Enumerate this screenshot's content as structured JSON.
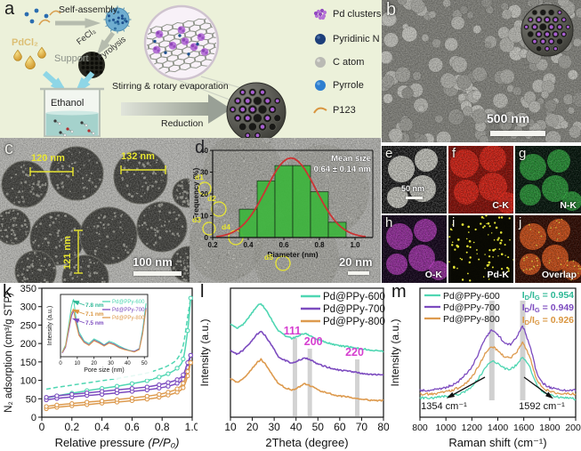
{
  "figure": {
    "letters": {
      "a": "a",
      "b": "b",
      "c": "c",
      "d": "d",
      "e": "e",
      "f": "f",
      "g": "g",
      "h": "h",
      "i": "i",
      "j": "j",
      "k": "k",
      "l": "l",
      "m": "m"
    }
  },
  "panel_a": {
    "labels": {
      "self_assembly": "Self-assembly",
      "fecl3": "FeCl₃",
      "pyrolysis": "Pyrolysis",
      "pdcl2": "PdCl₂",
      "support": "Support",
      "ethanol": "Ethanol",
      "stirring": "Stirring & rotary evaporation",
      "reduction": "Reduction"
    },
    "legend": [
      {
        "label": "Pd clusters"
      },
      {
        "label": "Pyridinic N"
      },
      {
        "label": "C atom"
      },
      {
        "label": "Pyrrole"
      },
      {
        "label": "P123"
      }
    ]
  },
  "panel_b": {
    "scale_bar": "500 nm"
  },
  "panel_c": {
    "measurements": [
      "120 nm",
      "132 nm",
      "121 nm"
    ],
    "scale_bar": "100 nm"
  },
  "panel_d": {
    "site_labels": [
      "d1",
      "d2",
      "d3",
      "d4",
      "d5"
    ],
    "scale_bar": "20 nm"
  },
  "panel_e": {
    "scale_bar": "50 nm"
  },
  "maps": {
    "f": "C-K",
    "g": "N-K",
    "h": "O-K",
    "i": "Pd-K",
    "j": "Overlap"
  },
  "colors": {
    "series_600": "#4fd6b2",
    "series_700": "#7c4bbf",
    "series_800": "#dd9a4e",
    "peak_label": "#d63fd0",
    "histogram_bar": "#3db53d",
    "fit_curve": "#cc3333",
    "annotation_yellow": "#e8e632"
  },
  "chart_data": [
    {
      "id": "n2-isotherm",
      "type": "line",
      "panel": "k",
      "xlabel": "Relative pressure (P/P₀)",
      "ylabel": "N₂ adsorption (cm³/g STP)",
      "xlim": [
        0,
        1.0
      ],
      "ylim": [
        0,
        350
      ],
      "xtick_labels": [
        "0",
        "0.2",
        "0.4",
        "0.6",
        "0.8",
        "1.0"
      ],
      "xtick_vals": [
        0,
        0.2,
        0.4,
        0.6,
        0.8,
        1.0
      ],
      "yticks": [
        0,
        50,
        100,
        150,
        200,
        250,
        300,
        350
      ],
      "series": [
        {
          "name": "Pd@PPy-600",
          "branch": "adsorption",
          "color": "#4fd6b2",
          "style": "markers",
          "x": [
            0.03,
            0.1,
            0.2,
            0.3,
            0.4,
            0.5,
            0.6,
            0.7,
            0.78,
            0.84,
            0.9,
            0.94,
            0.97,
            0.99
          ],
          "y": [
            52,
            58,
            65,
            72,
            78,
            84,
            91,
            99,
            109,
            118,
            133,
            158,
            235,
            323
          ]
        },
        {
          "name": "Pd@PPy-600",
          "branch": "desorption",
          "color": "#4fd6b2",
          "style": "dashed",
          "y": [
            76,
            81,
            87,
            93,
            99,
            105,
            112,
            120,
            130,
            140,
            158,
            195,
            272,
            323
          ]
        },
        {
          "name": "Pd@PPy-700",
          "branch": "adsorption",
          "color": "#7c4bbf",
          "style": "markers",
          "y": [
            47,
            51,
            55,
            59,
            62,
            66,
            70,
            74,
            79,
            84,
            92,
            103,
            135,
            168
          ]
        },
        {
          "name": "Pd@PPy-700",
          "branch": "desorption",
          "color": "#7c4bbf",
          "style": "line",
          "y": [
            54,
            58,
            62,
            66,
            70,
            74,
            78,
            82,
            88,
            94,
            102,
            115,
            148,
            168
          ]
        },
        {
          "name": "Pd@PPy-800",
          "branch": "adsorption",
          "color": "#dd9a4e",
          "style": "markers",
          "y": [
            23,
            27,
            31,
            34,
            38,
            41,
            45,
            49,
            54,
            60,
            68,
            80,
            112,
            148
          ]
        },
        {
          "name": "Pd@PPy-800",
          "branch": "desorption",
          "color": "#dd9a4e",
          "style": "line",
          "y": [
            29,
            33,
            37,
            41,
            44,
            48,
            52,
            57,
            62,
            68,
            77,
            92,
            124,
            148
          ]
        }
      ]
    },
    {
      "id": "pore-size",
      "type": "line",
      "panel": "k-inset",
      "xlabel": "Pore size (nm)",
      "ylabel": "Intensity (a.u.)",
      "xlim": [
        0,
        52
      ],
      "ylim": [
        0,
        105
      ],
      "xticks": [
        0,
        10,
        20,
        30,
        40,
        50
      ],
      "peak_annotations": [
        {
          "text": "7.8 nm",
          "series": "Pd@PPy-600",
          "color": "#2eb896"
        },
        {
          "text": "7.1 nm",
          "series": "Pd@PPy-800",
          "color": "#d9953f"
        },
        {
          "text": "7.5 nm",
          "series": "Pd@PPy-700",
          "color": "#7c4bbf"
        }
      ],
      "series": [
        {
          "name": "Pd@PPy-600",
          "color": "#4fd6b2",
          "x": [
            1,
            3,
            5,
            6.5,
            7.8,
            9,
            11,
            14,
            17,
            20,
            23,
            26,
            29,
            32,
            35,
            38,
            41,
            44,
            47,
            49,
            51
          ],
          "y": [
            8,
            20,
            55,
            85,
            97,
            70,
            42,
            27,
            22,
            30,
            26,
            20,
            26,
            23,
            18,
            14,
            11,
            9,
            14,
            45,
            90
          ]
        },
        {
          "name": "Pd@PPy-700",
          "color": "#7c4bbf",
          "y": [
            6,
            16,
            45,
            68,
            78,
            62,
            38,
            25,
            20,
            28,
            24,
            19,
            24,
            21,
            16,
            13,
            10,
            9,
            13,
            40,
            82
          ]
        },
        {
          "name": "Pd@PPy-800",
          "color": "#dd9a4e",
          "y": [
            7,
            18,
            50,
            74,
            80,
            58,
            36,
            24,
            19,
            27,
            23,
            18,
            23,
            20,
            15,
            12,
            10,
            8,
            12,
            38,
            80
          ]
        }
      ]
    },
    {
      "id": "xrd",
      "type": "line",
      "panel": "l",
      "xlabel": "2Theta (degree)",
      "ylabel": "Intensity (a.u.)",
      "xlim": [
        10,
        80
      ],
      "ylim": [
        0,
        100
      ],
      "xticks": [
        10,
        20,
        30,
        40,
        50,
        60,
        70,
        80
      ],
      "peak_labels": [
        {
          "text": "111",
          "x": 39.5
        },
        {
          "text": "200",
          "x": 46.3
        },
        {
          "text": "220",
          "x": 68
        }
      ],
      "series": [
        {
          "name": "Pd@PPy-600",
          "color": "#4fd6b2",
          "x": [
            10,
            13,
            16,
            19,
            22,
            24,
            26,
            29,
            32,
            35,
            38,
            41,
            44,
            47,
            50,
            54,
            58,
            62,
            66,
            70,
            75,
            80
          ],
          "y": [
            72,
            69,
            72,
            79,
            86,
            88,
            84,
            75,
            67,
            63,
            61,
            63,
            65,
            63,
            60,
            58,
            56,
            55,
            54,
            53,
            52,
            51
          ]
        },
        {
          "name": "Pd@PPy-700",
          "color": "#7c4bbf",
          "y": [
            52,
            49,
            52,
            58,
            64,
            67,
            63,
            55,
            47,
            44,
            42,
            44,
            46,
            44,
            41,
            39,
            37,
            36,
            35,
            34,
            33,
            33
          ]
        },
        {
          "name": "Pd@PPy-800",
          "color": "#dd9a4e",
          "y": [
            30,
            27,
            30,
            36,
            42,
            45,
            41,
            33,
            26,
            23,
            21,
            23,
            26,
            24,
            21,
            19,
            17,
            16,
            15,
            14,
            13,
            13
          ]
        }
      ]
    },
    {
      "id": "raman",
      "type": "line",
      "panel": "m",
      "xlabel": "Raman shift (cm⁻¹)",
      "ylabel": "Intensity (a.u.)",
      "xlim": [
        800,
        2000
      ],
      "ylim": [
        0,
        100
      ],
      "xticks": [
        800,
        1000,
        1200,
        1400,
        1600,
        1800,
        2000
      ],
      "band_positions": [
        1354,
        1592
      ],
      "band_labels": [
        "1354 cm⁻¹",
        "1592 cm⁻¹"
      ],
      "ratios": [
        {
          "name": "Pd@PPy-600",
          "label_parts": [
            "I",
            "D",
            "/I",
            "G"
          ],
          "value": "= 0.954",
          "color": "#2eb896"
        },
        {
          "name": "Pd@PPy-700",
          "label_parts": [
            "I",
            "D",
            "/I",
            "G"
          ],
          "value": "= 0.949",
          "color": "#7c4bbf"
        },
        {
          "name": "Pd@PPy-800",
          "label_parts": [
            "I",
            "D",
            "/I",
            "G"
          ],
          "value": "= 0.926",
          "color": "#d9953f"
        }
      ],
      "series": [
        {
          "name": "Pd@PPy-600",
          "color": "#4fd6b2",
          "x": [
            800,
            850,
            900,
            950,
            1000,
            1050,
            1100,
            1150,
            1200,
            1250,
            1300,
            1354,
            1400,
            1450,
            1500,
            1550,
            1592,
            1650,
            1700,
            1750,
            1800,
            1850,
            1900,
            1950,
            2000
          ],
          "y": [
            15,
            15,
            15,
            16,
            16,
            17,
            18,
            20,
            24,
            30,
            38,
            44,
            42,
            38,
            37,
            41,
            47,
            38,
            25,
            19,
            17,
            16,
            15,
            15,
            14
          ]
        },
        {
          "name": "Pd@PPy-800",
          "color": "#dd9a4e",
          "y": [
            18,
            18,
            18,
            19,
            20,
            21,
            23,
            26,
            31,
            39,
            49,
            55,
            52,
            47,
            46,
            51,
            58,
            46,
            29,
            22,
            20,
            19,
            18,
            18,
            18
          ]
        },
        {
          "name": "Pd@PPy-700",
          "color": "#7c4bbf",
          "y": [
            21,
            21,
            21,
            22,
            23,
            25,
            28,
            33,
            39,
            49,
            61,
            68,
            64,
            58,
            56,
            63,
            71,
            55,
            34,
            26,
            23,
            22,
            21,
            21,
            21
          ]
        }
      ]
    },
    {
      "id": "size-histogram",
      "type": "bar",
      "panel": "d",
      "xlabel": "Diameter (nm)",
      "ylabel": "Frequency (%)",
      "xlim": [
        0.2,
        1.1
      ],
      "ylim": [
        0,
        40
      ],
      "xtick_labels": [
        "0.2",
        "0.4",
        "0.6",
        "0.8",
        "1.0"
      ],
      "xtick_vals": [
        0.2,
        0.4,
        0.6,
        0.8,
        1.0
      ],
      "yticks": [
        0,
        10,
        20,
        30,
        40
      ],
      "bin_start": 0.35,
      "bin_width": 0.1,
      "values": [
        13,
        26,
        33,
        33,
        21,
        7
      ],
      "fit": {
        "type": "gaussian",
        "mean": 0.64,
        "sd": 0.14,
        "peak": 36.5
      },
      "annotation": [
        "Mean size",
        "0.64 ± 0.14 nm"
      ]
    }
  ]
}
